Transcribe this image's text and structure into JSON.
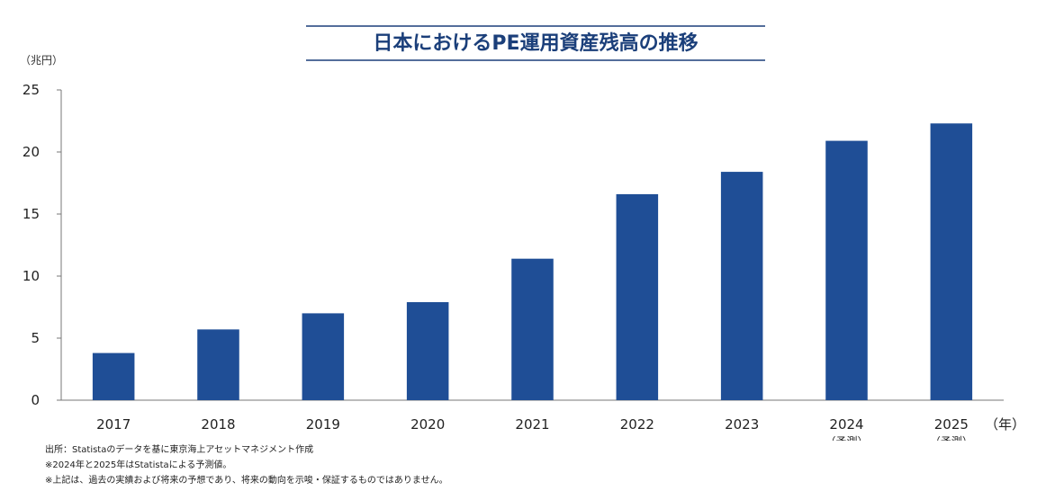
{
  "chart_data": {
    "type": "bar",
    "title": "日本におけるPE運用資産残高の推移",
    "ylabel": "（兆円）",
    "xlabel": "（年）",
    "categories": [
      "2017",
      "2018",
      "2019",
      "2020",
      "2021",
      "2022",
      "2023",
      "2024",
      "2025"
    ],
    "category_notes": [
      "",
      "",
      "",
      "",
      "",
      "",
      "",
      "（予測）",
      "（予測）"
    ],
    "values": [
      3.8,
      5.7,
      7.0,
      7.9,
      11.4,
      16.6,
      18.4,
      20.9,
      22.3
    ],
    "ylim": [
      0,
      25
    ],
    "yticks": [
      0,
      5,
      10,
      15,
      20,
      25
    ],
    "grid": false,
    "bar_color": "#1f4e96",
    "title_line_color": "#1b3f7a"
  },
  "notes": [
    "出所：Statistaのデータを基に東京海上アセットマネジメント作成",
    "※2024年と2025年はStatistaによる予測値。",
    "※上記は、過去の実績および将来の予想であり、将来の動向を示唆・保証するものではありません。"
  ]
}
